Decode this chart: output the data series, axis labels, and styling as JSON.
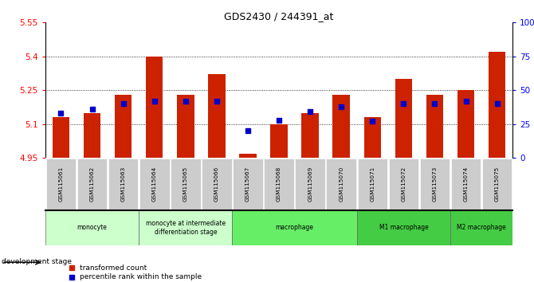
{
  "title": "GDS2430 / 244391_at",
  "samples": [
    "GSM115061",
    "GSM115062",
    "GSM115063",
    "GSM115064",
    "GSM115065",
    "GSM115066",
    "GSM115067",
    "GSM115068",
    "GSM115069",
    "GSM115070",
    "GSM115071",
    "GSM115072",
    "GSM115073",
    "GSM115074",
    "GSM115075"
  ],
  "transformed_count": [
    5.13,
    5.15,
    5.23,
    5.4,
    5.23,
    5.32,
    4.97,
    5.1,
    5.15,
    5.23,
    5.13,
    5.3,
    5.23,
    5.25,
    5.42
  ],
  "percentile_rank": [
    33,
    36,
    40,
    42,
    42,
    42,
    20,
    28,
    34,
    38,
    27,
    40,
    40,
    42,
    40
  ],
  "y_min": 4.95,
  "y_max": 5.55,
  "y_ticks_left": [
    4.95,
    5.1,
    5.25,
    5.4,
    5.55
  ],
  "y_ticks_right_vals": [
    0,
    25,
    50,
    75,
    100
  ],
  "groups": [
    {
      "label": "monocyte",
      "start": 0,
      "end": 3,
      "color": "#ccffcc"
    },
    {
      "label": "monocyte at intermediate\ndifferentiation stage",
      "start": 3,
      "end": 6,
      "color": "#ccffcc"
    },
    {
      "label": "macrophage",
      "start": 6,
      "end": 10,
      "color": "#66ee66"
    },
    {
      "label": "M1 macrophage",
      "start": 10,
      "end": 13,
      "color": "#44cc44"
    },
    {
      "label": "M2 macrophage",
      "start": 13,
      "end": 15,
      "color": "#44cc44"
    }
  ],
  "bar_color": "#cc2200",
  "percentile_color": "#0000cc",
  "bar_width": 0.55,
  "xlabel_area": "development stage",
  "legend1": "transformed count",
  "legend2": "percentile rank within the sample",
  "group_border_color": "#888888"
}
